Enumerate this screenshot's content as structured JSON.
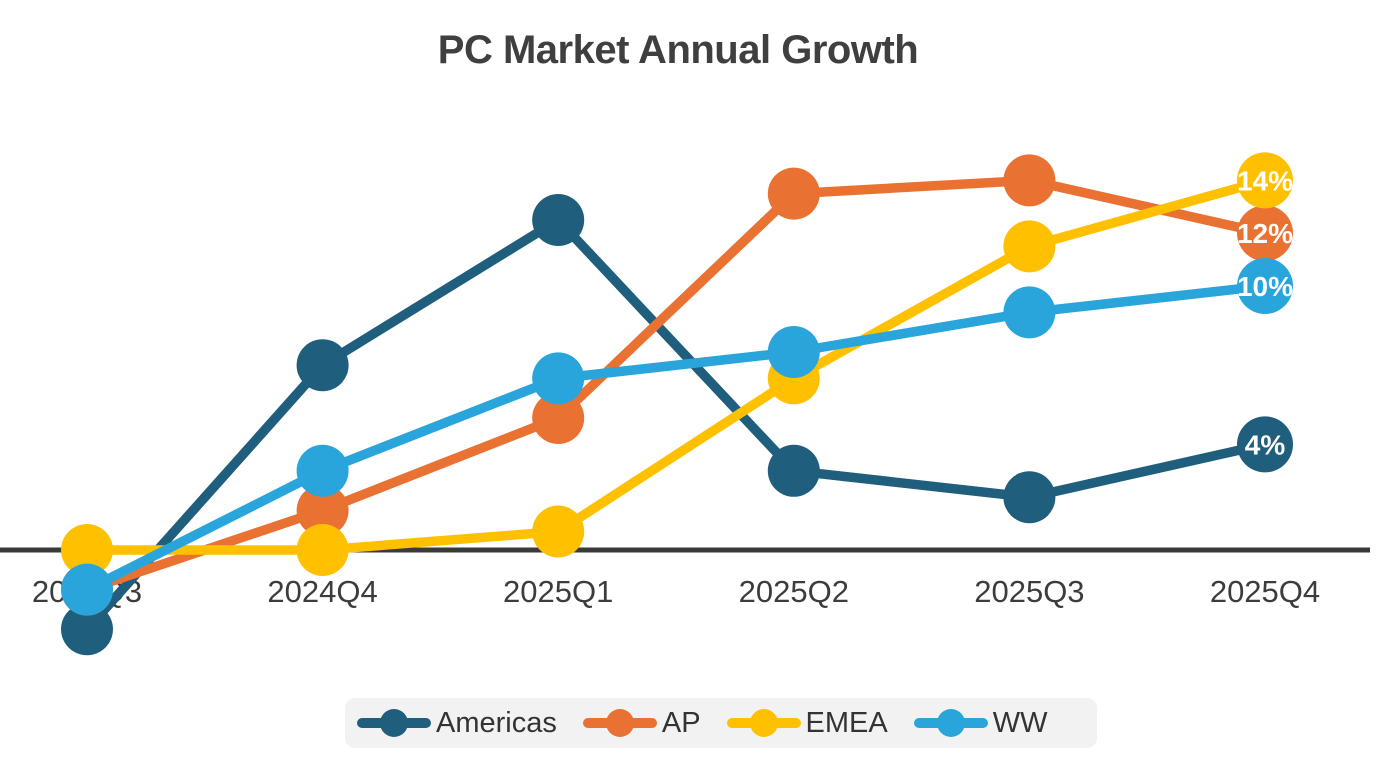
{
  "chart_data": {
    "type": "line",
    "title": "PC Market Annual Growth",
    "unit": "%",
    "categories": [
      "2024Q3",
      "2024Q4",
      "2025Q1",
      "2025Q2",
      "2025Q3",
      "2025Q4"
    ],
    "series": [
      {
        "name": "Americas",
        "color": "#1F5E7C",
        "values": [
          -3,
          7,
          12.5,
          3,
          2,
          4
        ],
        "end_label": "4%"
      },
      {
        "name": "AP",
        "color": "#E97132",
        "values": [
          -1.5,
          1.5,
          5,
          13.5,
          14,
          12
        ],
        "end_label": "12%"
      },
      {
        "name": "EMEA",
        "color": "#FFC000",
        "values": [
          0,
          0,
          0.7,
          6.5,
          11.5,
          14
        ],
        "end_label": "14%"
      },
      {
        "name": "WW",
        "color": "#29A5DC",
        "values": [
          -1.5,
          3,
          6.5,
          7.5,
          9,
          10
        ],
        "end_label": "10%"
      }
    ],
    "ylim": [
      -4,
      15.5
    ],
    "grid": false,
    "y_axis_visible": false,
    "x_axis_line_color": "#3A3A3A",
    "legend_position": "bottom",
    "legend_background": "#F2F2F2",
    "title_color": "#3F3F3F",
    "tick_label_color": "#3C3C3C",
    "data_label_color": "#FFFFFF"
  }
}
